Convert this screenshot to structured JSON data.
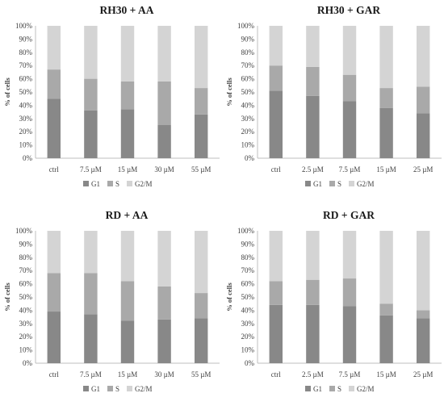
{
  "colors": {
    "G1": "#888888",
    "S": "#a9a9a9",
    "G2M": "#d4d4d4",
    "axis": "#bfbfbf"
  },
  "chart_data": [
    {
      "type": "bar",
      "stacked": true,
      "title": "RH30 + AA",
      "ylabel": "% of cells",
      "ylim": [
        0,
        100
      ],
      "y_ticks": [
        "0%",
        "10%",
        "20%",
        "30%",
        "40%",
        "50%",
        "60%",
        "70%",
        "80%",
        "90%",
        "100%"
      ],
      "categories": [
        "ctrl",
        "7.5 µM",
        "15 µM",
        "30 µM",
        "55 µM"
      ],
      "series": [
        {
          "name": "G1",
          "values": [
            45,
            36,
            37,
            25,
            33
          ]
        },
        {
          "name": "S",
          "values": [
            22,
            24,
            21,
            33,
            20
          ]
        },
        {
          "name": "G2/M",
          "values": [
            33,
            40,
            42,
            42,
            47
          ]
        }
      ],
      "legend_position": "bottom"
    },
    {
      "type": "bar",
      "stacked": true,
      "title": "RH30 + GAR",
      "ylabel": "% of cells",
      "ylim": [
        0,
        100
      ],
      "y_ticks": [
        "0%",
        "10%",
        "20%",
        "30%",
        "40%",
        "50%",
        "60%",
        "70%",
        "80%",
        "90%",
        "100%"
      ],
      "categories": [
        "ctrl",
        "2.5 µM",
        "7.5 µM",
        "15 µM",
        "25 µM"
      ],
      "series": [
        {
          "name": "G1",
          "values": [
            51,
            47,
            43,
            38,
            34
          ]
        },
        {
          "name": "S",
          "values": [
            19,
            22,
            20,
            15,
            20
          ]
        },
        {
          "name": "G2/M",
          "values": [
            30,
            31,
            37,
            47,
            46
          ]
        }
      ],
      "legend_position": "bottom"
    },
    {
      "type": "bar",
      "stacked": true,
      "title": "RD + AA",
      "ylabel": "% of cells",
      "ylim": [
        0,
        100
      ],
      "y_ticks": [
        "0%",
        "10%",
        "20%",
        "30%",
        "40%",
        "50%",
        "60%",
        "70%",
        "80%",
        "90%",
        "100%"
      ],
      "categories": [
        "ctrl",
        "7.5 µM",
        "15 µM",
        "30 µM",
        "55 µM"
      ],
      "series": [
        {
          "name": "G1",
          "values": [
            39,
            37,
            32,
            33,
            34
          ]
        },
        {
          "name": "S",
          "values": [
            29,
            31,
            30,
            25,
            19
          ]
        },
        {
          "name": "G2/M",
          "values": [
            32,
            32,
            38,
            42,
            47
          ]
        }
      ],
      "legend_position": "bottom"
    },
    {
      "type": "bar",
      "stacked": true,
      "title": "RD + GAR",
      "ylabel": "% of cells",
      "ylim": [
        0,
        100
      ],
      "y_ticks": [
        "0%",
        "10%",
        "20%",
        "30%",
        "40%",
        "50%",
        "60%",
        "70%",
        "80%",
        "90%",
        "100%"
      ],
      "categories": [
        "ctrl",
        "2.5 µM",
        "7.5 µM",
        "15 µM",
        "25 µM"
      ],
      "series": [
        {
          "name": "G1",
          "values": [
            44,
            44,
            43,
            36,
            34
          ]
        },
        {
          "name": "S",
          "values": [
            18,
            19,
            21,
            9,
            6
          ]
        },
        {
          "name": "G2/M",
          "values": [
            38,
            37,
            36,
            55,
            60
          ]
        }
      ],
      "legend_position": "bottom"
    }
  ]
}
